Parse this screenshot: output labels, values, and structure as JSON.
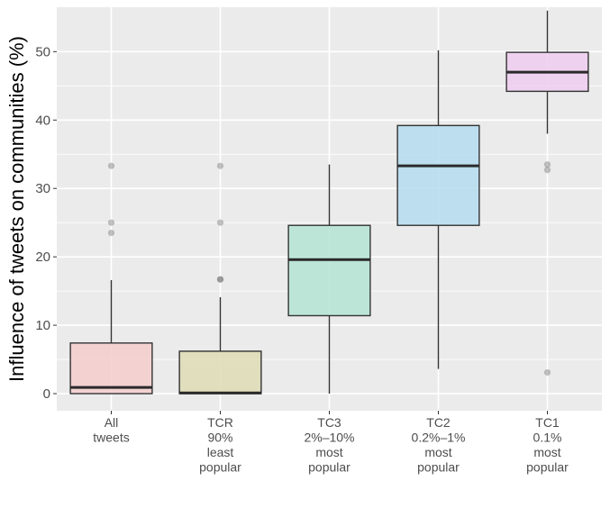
{
  "chart_data": {
    "type": "boxplot",
    "ylabel": "Influence of tweets on communities (%)",
    "xlabel": "",
    "title": "",
    "ylim": [
      -2.5,
      56.5
    ],
    "yticks": [
      "0",
      "10",
      "20",
      "30",
      "40",
      "50"
    ],
    "ytick_values": [
      0,
      10,
      20,
      30,
      40,
      50
    ],
    "grid": true,
    "categories": [
      {
        "lines": [
          "All",
          "tweets"
        ]
      },
      {
        "lines": [
          "TCR",
          "90%",
          "least",
          "popular"
        ]
      },
      {
        "lines": [
          "TC3",
          "2%–10%",
          "most",
          "popular"
        ]
      },
      {
        "lines": [
          "TC2",
          "0.2%–1%",
          "most",
          "popular"
        ]
      },
      {
        "lines": [
          "TC1",
          "0.1%",
          "most",
          "popular"
        ]
      }
    ],
    "boxes": [
      {
        "min": 0,
        "q1": 0,
        "median": 0.9,
        "q3": 7.4,
        "max": 16.6,
        "outliers": [
          33.3,
          25.0,
          23.5
        ],
        "color": "#f4cccc"
      },
      {
        "min": 0,
        "q1": 0,
        "median": 0.1,
        "q3": 6.2,
        "max": 14.1,
        "outliers": [
          33.3,
          25.0,
          16.7,
          16.7
        ],
        "color": "#dedcb4"
      },
      {
        "min": 0,
        "q1": 11.4,
        "median": 19.6,
        "q3": 24.6,
        "max": 33.5,
        "outliers": [],
        "color": "#b4e4d4"
      },
      {
        "min": 3.6,
        "q1": 24.6,
        "median": 33.3,
        "q3": 39.2,
        "max": 50.2,
        "outliers": [],
        "color": "#b4dcef"
      },
      {
        "min": 38.0,
        "q1": 44.2,
        "median": 47.0,
        "q3": 49.9,
        "max": 56.0,
        "outliers": [
          33.5,
          32.7,
          3.1
        ],
        "color": "#edcdef"
      }
    ],
    "panel_bg": "#ebebeb",
    "grid_color": "#ffffff"
  }
}
